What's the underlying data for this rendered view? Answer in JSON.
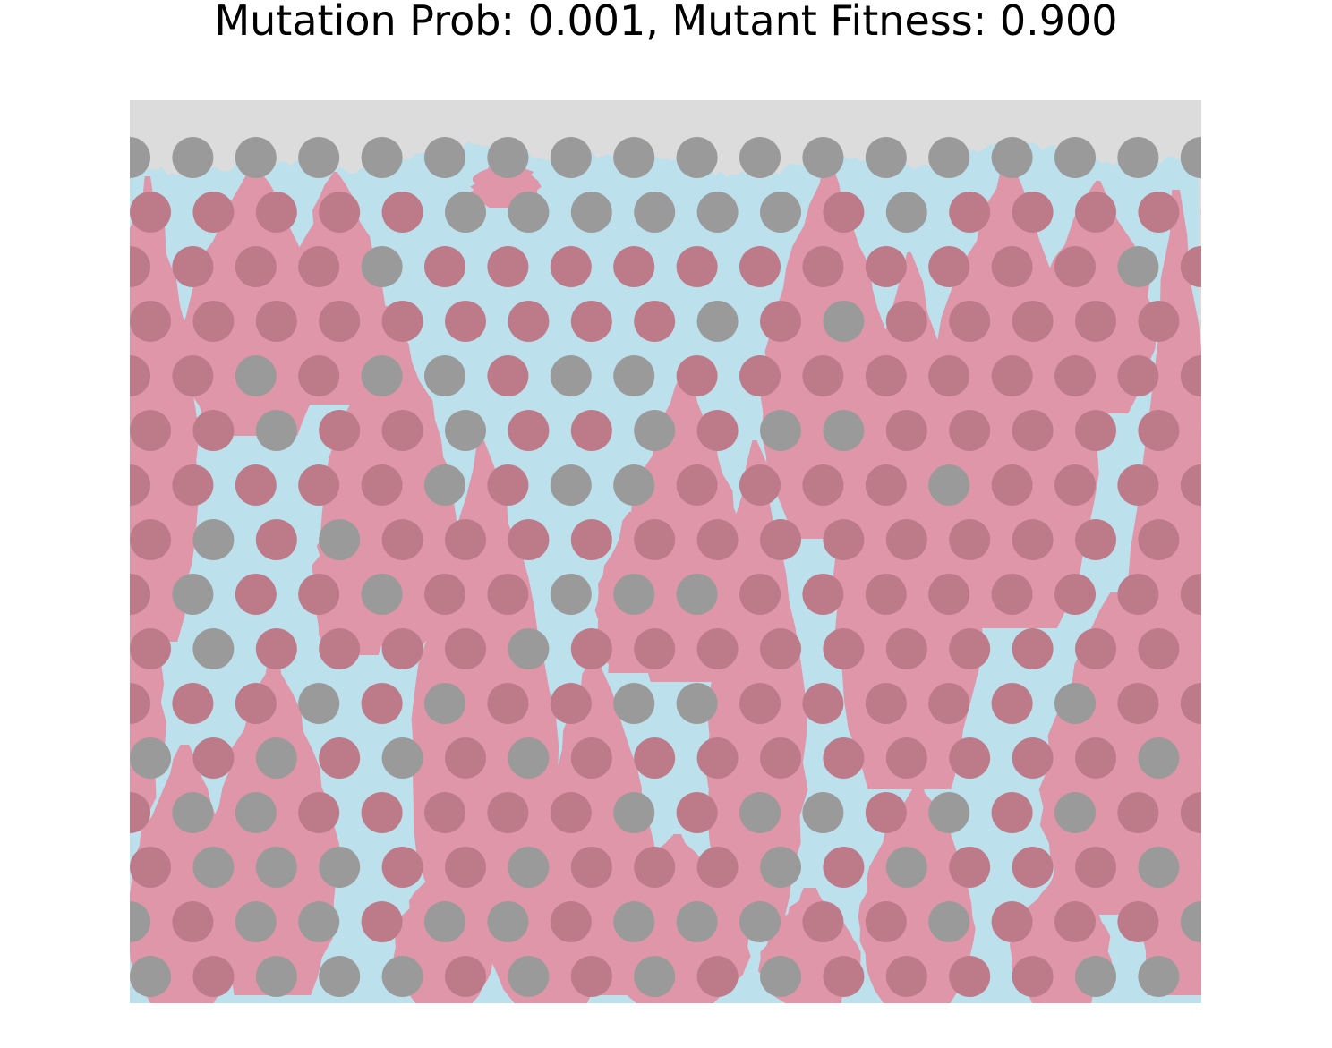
{
  "title": "Mutation Prob: 0.001, Mutant Fitness: 0.900",
  "colors": {
    "background": "#dcdcdc",
    "wildtype": "#bde1ec",
    "mutant": "#df96a9",
    "obstacle_mutant": "#bd7b8a",
    "obstacle_empty": "#9a9a9a"
  },
  "obstacle_rows": [
    "GGGGGGGGGGGGGGGGGG",
    "MMMMMGGGGGGMGMMMMG",
    "MMMMGMMMMMMMMMMMGM",
    "MMMMMMMMMGMGMMMMMM",
    "MMGMGGMGGMMMMMMMMM",
    "MMGMMGMMGMGGMMMMMM",
    "MMMMMGMGGMMMMGMMMM",
    "MGMGMMMMMMMMMMMMMM",
    "MGMMGMMGGGMMMMMMMM",
    "MGMMMMGMMMMMMMMMMM",
    "MMMGMGMMGGMMMMMGMM",
    "GMGMGMGMMMMMMMMMGM",
    "MGGMMMMMGMGGMGMGMM",
    "MGGGMMGMMMGMGMMMGM",
    "GMGGMGGMGGGMMGMMMG",
    "GMGGGMGMGMGMMMMGGG"
  ]
}
